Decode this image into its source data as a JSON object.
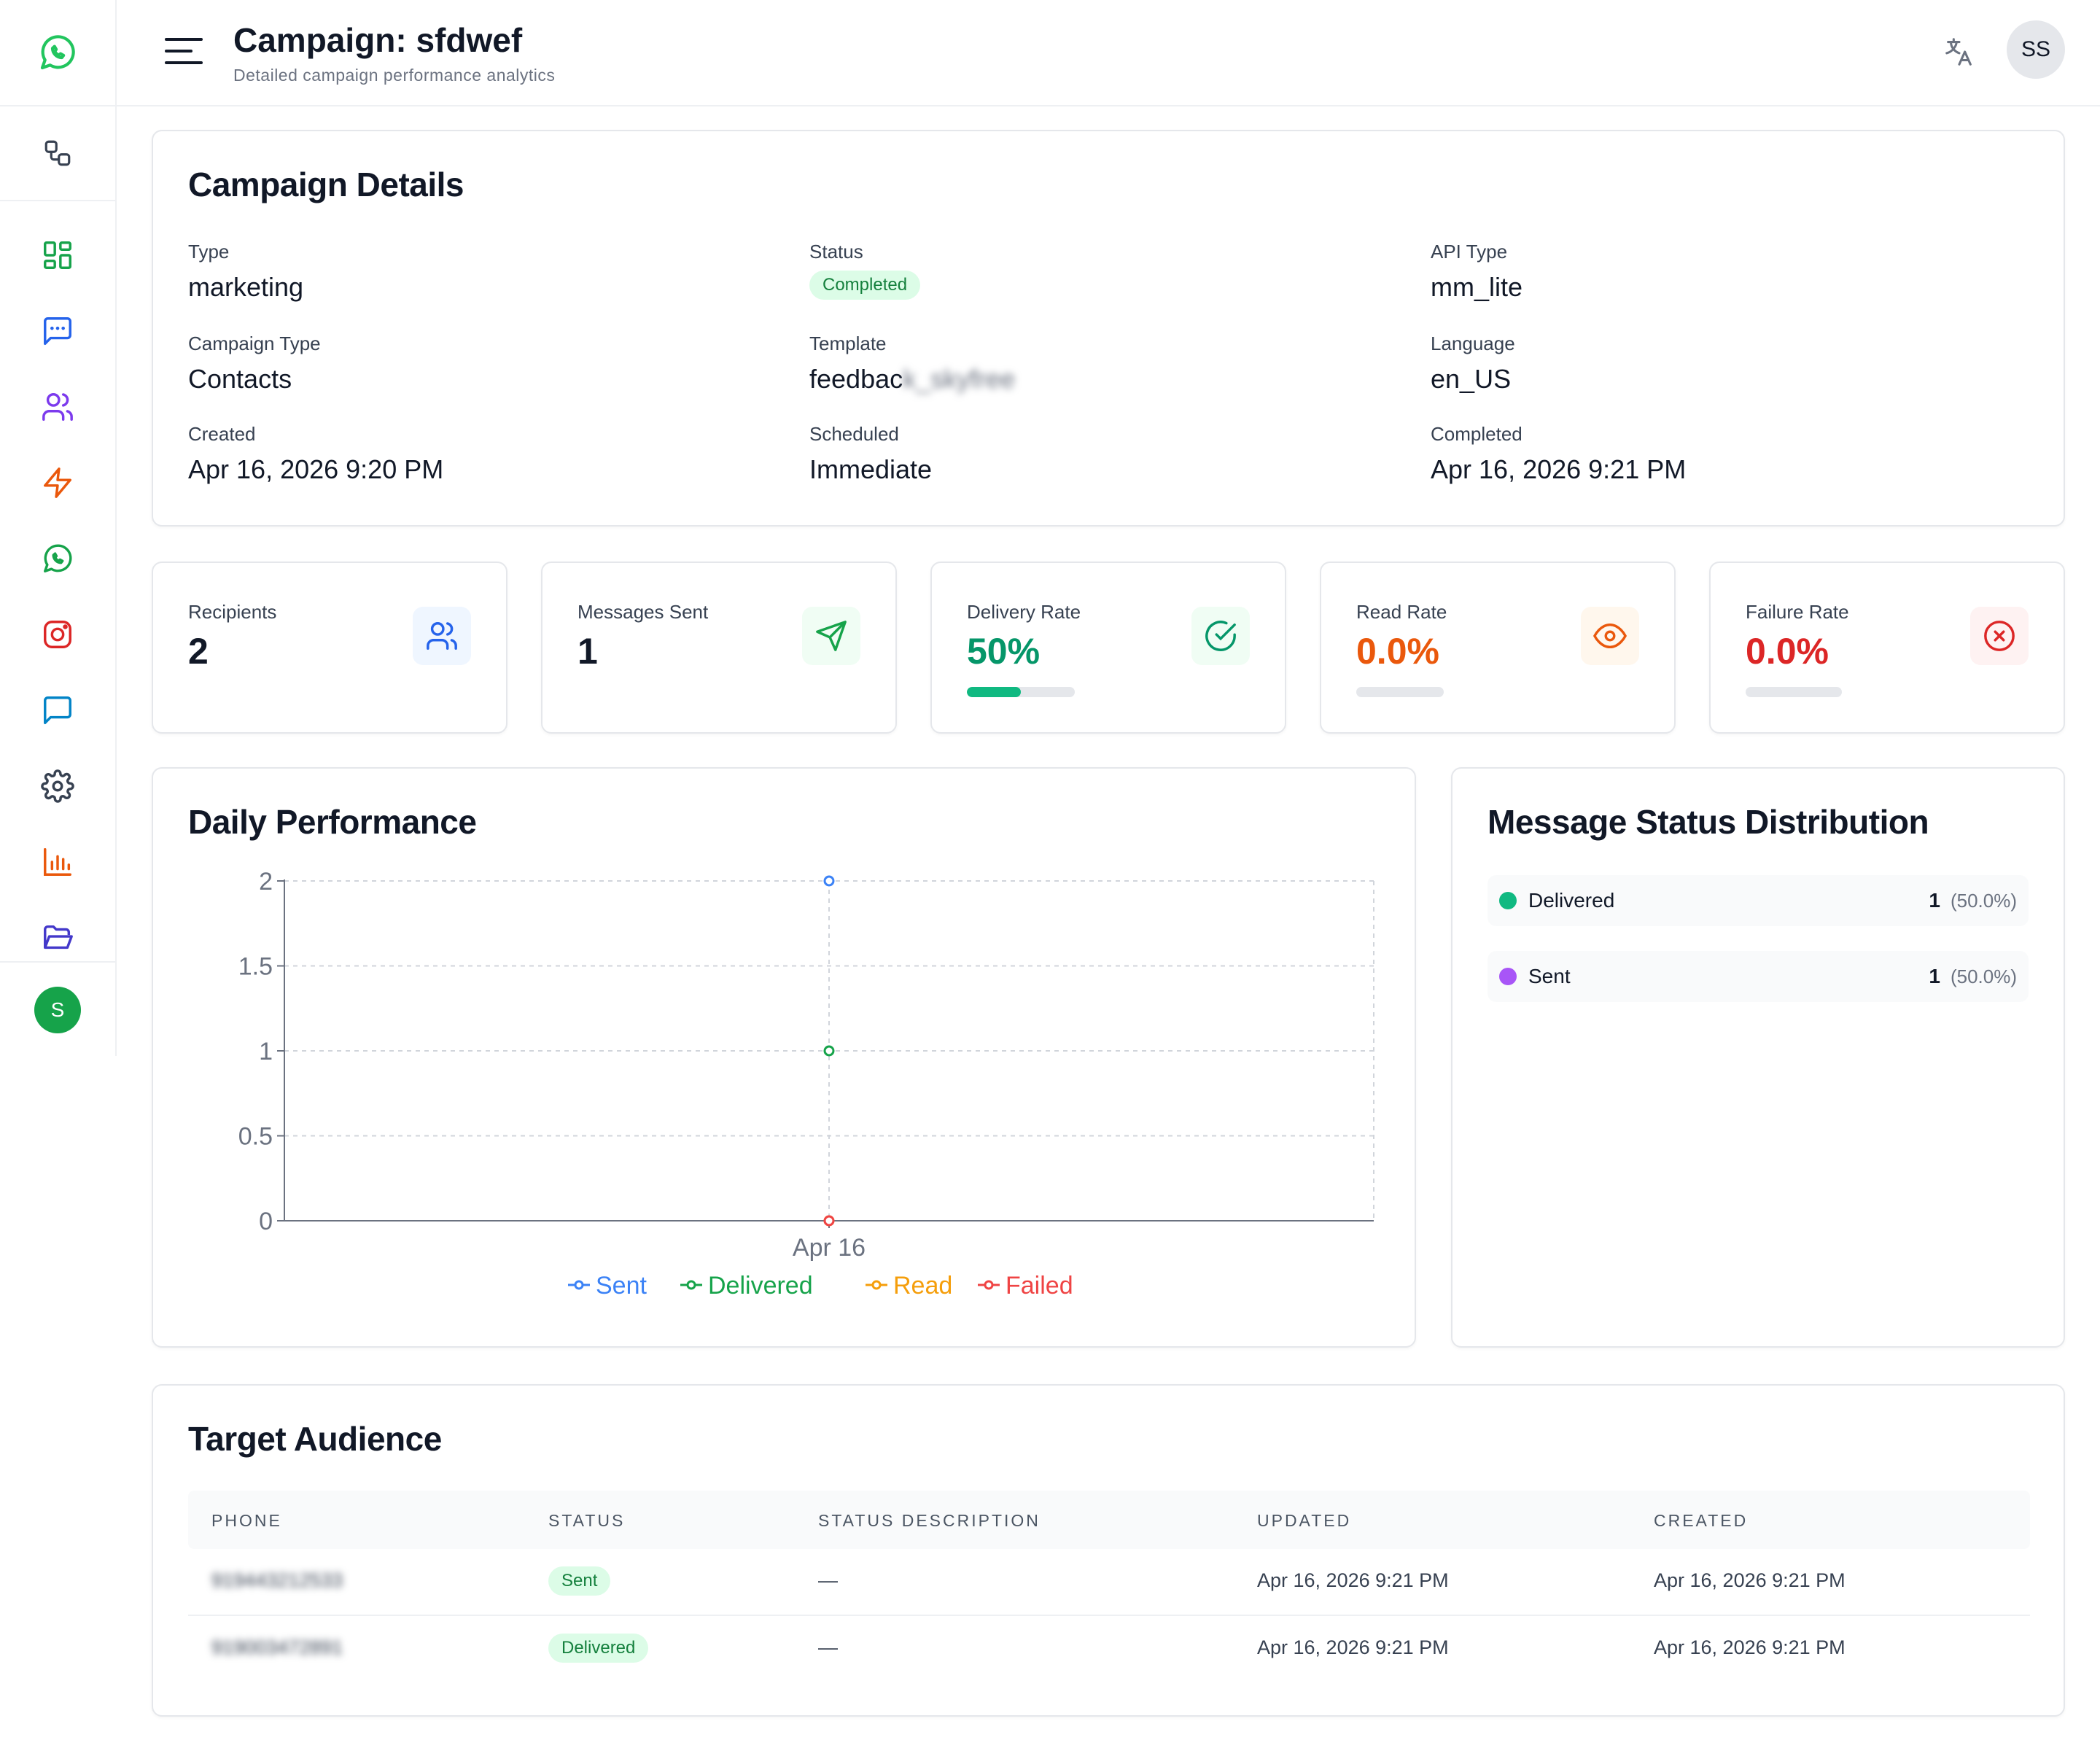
{
  "header": {
    "title": "Campaign: sfdwef",
    "subtitle": "Detailed campaign performance analytics",
    "user_initials": "SS"
  },
  "sidebar": {
    "user_initial": "S",
    "items": [
      {
        "icon": "dashboard-icon",
        "color": "#16a34a"
      },
      {
        "icon": "message-square-icon",
        "color": "#2563eb"
      },
      {
        "icon": "users-icon",
        "color": "#7c3aed"
      },
      {
        "icon": "zap-icon",
        "color": "#ea580c"
      },
      {
        "icon": "whatsapp-icon",
        "color": "#16a34a"
      },
      {
        "icon": "instagram-icon",
        "color": "#dc2626"
      },
      {
        "icon": "chat-bubble-icon",
        "color": "#0284c7"
      },
      {
        "icon": "settings-icon",
        "color": "#374151"
      },
      {
        "icon": "bar-chart-icon",
        "color": "#ea580c"
      },
      {
        "icon": "folder-open-icon",
        "color": "#4338ca"
      }
    ]
  },
  "details": {
    "title": "Campaign Details",
    "type_label": "Type",
    "type_value": "marketing",
    "status_label": "Status",
    "status_value": "Completed",
    "api_label": "API Type",
    "api_value": "mm_lite",
    "ctype_label": "Campaign Type",
    "ctype_value": "Contacts",
    "template_label": "Template",
    "template_value": "feedbac",
    "template_blurred": "k_skyfree",
    "language_label": "Language",
    "language_value": "en_US",
    "created_label": "Created",
    "created_value": "Apr 16, 2026 9:20 PM",
    "scheduled_label": "Scheduled",
    "scheduled_value": "Immediate",
    "completed_label": "Completed",
    "completed_value": "Apr 16, 2026 9:21 PM"
  },
  "stats": {
    "recipients_label": "Recipients",
    "recipients_value": "2",
    "sent_label": "Messages Sent",
    "sent_value": "1",
    "delivery_label": "Delivery Rate",
    "delivery_value": "50%",
    "delivery_fraction": 0.5,
    "read_label": "Read Rate",
    "read_value": "0.0%",
    "read_fraction": 0,
    "failure_label": "Failure Rate",
    "failure_value": "0.0%",
    "failure_fraction": 0
  },
  "performance": {
    "title": "Daily Performance"
  },
  "chart_data": {
    "type": "line",
    "categories": [
      "Apr 16"
    ],
    "series": [
      {
        "name": "Sent",
        "values": [
          2
        ],
        "color": "#3b82f6"
      },
      {
        "name": "Delivered",
        "values": [
          1
        ],
        "color": "#16a34a"
      },
      {
        "name": "Read",
        "values": [
          0
        ],
        "color": "#f59e0b"
      },
      {
        "name": "Failed",
        "values": [
          0
        ],
        "color": "#ef4444"
      }
    ],
    "y_ticks": [
      "0",
      "0.5",
      "1",
      "1.5",
      "2"
    ],
    "ylim": [
      0,
      2
    ],
    "grid": true,
    "legend": "bottom"
  },
  "distribution": {
    "title": "Message Status Distribution",
    "rows": [
      {
        "name": "Delivered",
        "count": "1",
        "pct": "(50.0%)",
        "color": "#10b981"
      },
      {
        "name": "Sent",
        "count": "1",
        "pct": "(50.0%)",
        "color": "#a855f7"
      }
    ]
  },
  "audience": {
    "title": "Target Audience",
    "columns": [
      "PHONE",
      "STATUS",
      "STATUS DESCRIPTION",
      "UPDATED",
      "CREATED"
    ],
    "rows": [
      {
        "phone": "919443212533",
        "status": "Sent",
        "desc": "—",
        "updated": "Apr 16, 2026 9:21 PM",
        "created": "Apr 16, 2026 9:21 PM"
      },
      {
        "phone": "919003472891",
        "status": "Delivered",
        "desc": "—",
        "updated": "Apr 16, 2026 9:21 PM",
        "created": "Apr 16, 2026 9:21 PM"
      }
    ]
  }
}
